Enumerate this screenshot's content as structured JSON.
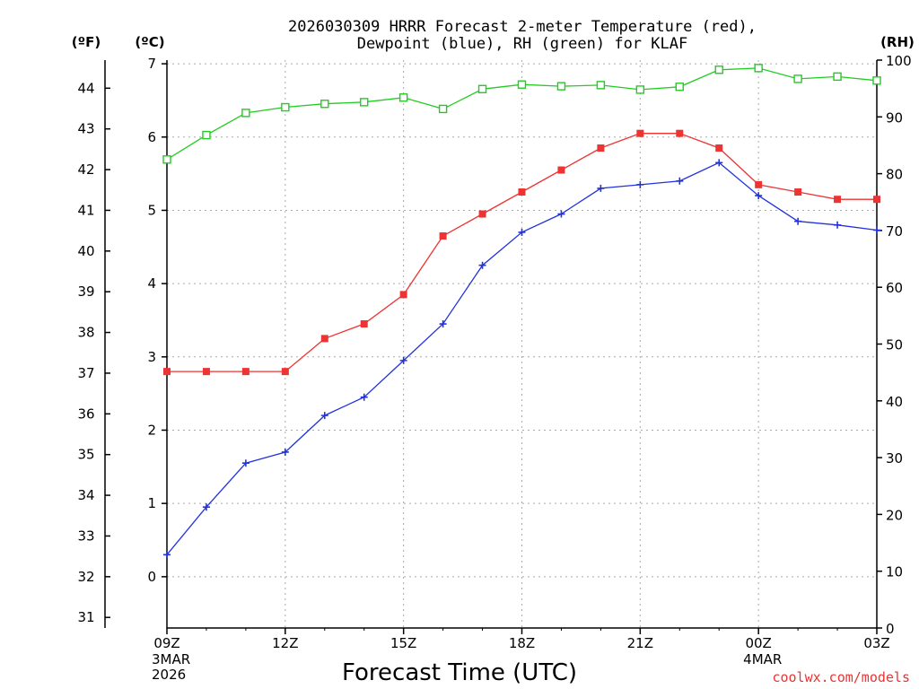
{
  "chart_data": {
    "type": "line",
    "title_line1": "2026030309 HRRR Forecast 2-meter Temperature (red),",
    "title_line2": "Dewpoint (blue), RH (green) for KLAF",
    "xlabel": "Forecast Time (UTC)",
    "credit": "coolwx.com/models",
    "unit_f": "(ºF)",
    "unit_c": "(ºC)",
    "unit_rh": "(RH)",
    "x_hours": [
      0,
      1,
      2,
      3,
      4,
      5,
      6,
      7,
      8,
      9,
      10,
      11,
      12,
      13,
      14,
      15,
      16,
      17,
      18
    ],
    "x_ticks": [
      {
        "hour": 0,
        "label": "09Z",
        "label2": "3MAR",
        "label3": "2026"
      },
      {
        "hour": 3,
        "label": "12Z",
        "label2": "",
        "label3": ""
      },
      {
        "hour": 6,
        "label": "15Z",
        "label2": "",
        "label3": ""
      },
      {
        "hour": 9,
        "label": "18Z",
        "label2": "",
        "label3": ""
      },
      {
        "hour": 12,
        "label": "21Z",
        "label2": "",
        "label3": ""
      },
      {
        "hour": 15,
        "label": "00Z",
        "label2": "4MAR",
        "label3": ""
      },
      {
        "hour": 18,
        "label": "03Z",
        "label2": "",
        "label3": ""
      }
    ],
    "xlim": [
      0,
      18
    ],
    "celsius_range": [
      -0.7,
      7.05
    ],
    "celsius_ticks": [
      "0",
      "1",
      "2",
      "3",
      "4",
      "5",
      "6",
      "7"
    ],
    "fahrenheit_ticks": [
      "31",
      "32",
      "33",
      "34",
      "35",
      "36",
      "37",
      "38",
      "39",
      "40",
      "41",
      "42",
      "43",
      "44"
    ],
    "rh_range": [
      0,
      100
    ],
    "rh_ticks": [
      "0",
      "10",
      "20",
      "30",
      "40",
      "50",
      "60",
      "70",
      "80",
      "90",
      "100"
    ],
    "series": [
      {
        "name": "Temperature",
        "axis": "celsius",
        "color": "#ee3333",
        "marker": "square-filled",
        "values": [
          2.8,
          2.8,
          2.8,
          2.8,
          3.25,
          3.45,
          3.85,
          4.65,
          4.95,
          5.25,
          5.55,
          5.85,
          6.05,
          6.05,
          5.85,
          5.35,
          5.25,
          5.15,
          5.15
        ]
      },
      {
        "name": "Dewpoint",
        "axis": "celsius",
        "color": "#2233dd",
        "marker": "plus",
        "values": [
          0.3,
          0.95,
          1.55,
          1.7,
          2.2,
          2.45,
          2.95,
          3.45,
          4.25,
          4.7,
          4.95,
          5.3,
          5.35,
          5.4,
          5.65,
          5.2,
          4.85,
          4.8,
          4.73
        ]
      },
      {
        "name": "RH",
        "axis": "rh",
        "color": "#22cc22",
        "marker": "square-open",
        "values": [
          82.5,
          86.8,
          90.7,
          91.7,
          92.3,
          92.6,
          93.4,
          91.4,
          94.9,
          95.7,
          95.4,
          95.6,
          94.8,
          95.3,
          98.3,
          98.6,
          96.7,
          97.1,
          96.4
        ]
      }
    ]
  }
}
